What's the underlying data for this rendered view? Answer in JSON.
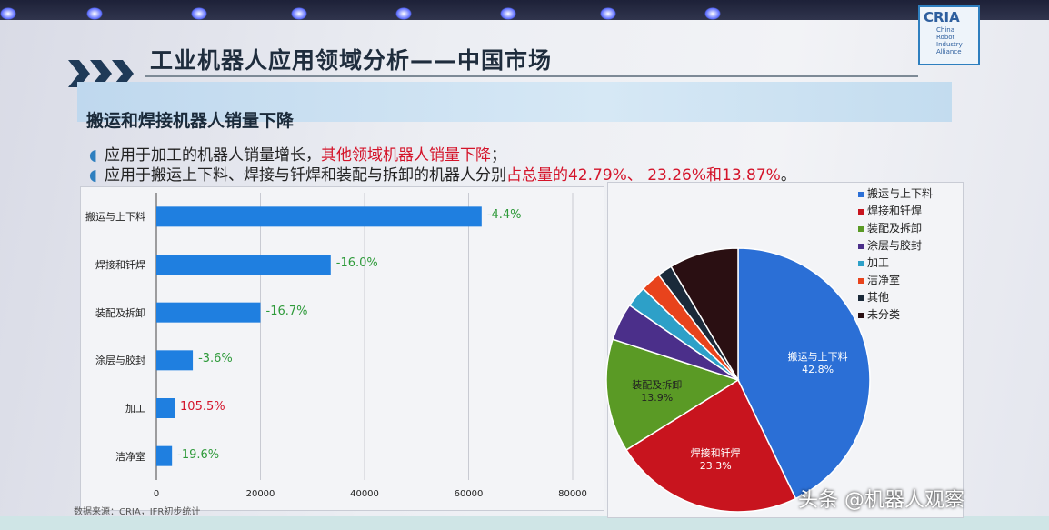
{
  "header": {
    "title": "工业机器人应用领域分析——中国市场",
    "subtitle": "搬运和焊接机器人销量下降",
    "logo_main": "CRIA",
    "logo_sub": [
      "China",
      "Robot",
      "Industry",
      "Alliance"
    ]
  },
  "bullets": [
    {
      "plain": "应用于加工的机器人销量增长，",
      "highlight": "其他领域机器人销量下降",
      "tail": "；"
    },
    {
      "plain": "应用于搬运上下料、焊接与钎焊和装配与拆卸的机器人分别",
      "highlight": "占总量的42.79%、 23.26%和13.87%",
      "tail": "。"
    }
  ],
  "source": "数据来源：CRIA，IFR初步统计",
  "watermark": "头条 @机器人观察",
  "colors": {
    "bar": "#1f7fe0",
    "positive": "#d4142a",
    "negative": "#2e9a3a"
  },
  "chart_data": [
    {
      "type": "bar",
      "orientation": "horizontal",
      "categories": [
        "搬运与上下料",
        "焊接和钎焊",
        "装配及拆卸",
        "涂层与胶封",
        "加工",
        "洁净室"
      ],
      "values": [
        62500,
        33500,
        20000,
        7000,
        3500,
        3000
      ],
      "data_labels": [
        "-4.4%",
        "-16.0%",
        "-16.7%",
        "-3.6%",
        "105.5%",
        "-19.6%"
      ],
      "xlim": [
        0,
        80000
      ],
      "xticks": [
        "0",
        "20000",
        "40000",
        "60000",
        "80000"
      ],
      "grid": true
    },
    {
      "type": "pie",
      "categories": [
        "搬运与上下料",
        "焊接和钎焊",
        "装配及拆卸",
        "涂层与胶封",
        "加工",
        "洁净室",
        "其他",
        "未分类"
      ],
      "values": [
        42.8,
        23.3,
        13.9,
        4.6,
        2.6,
        2.5,
        1.8,
        8.5
      ],
      "slice_labels": [
        {
          "name": "搬运与上下料",
          "value": "42.8%"
        },
        {
          "name": "焊接和钎焊",
          "value": "23.3%"
        },
        {
          "name": "装配及拆卸",
          "value": "13.9%"
        },
        null,
        null,
        null,
        null,
        null
      ],
      "colors": [
        "#2b6fd6",
        "#c8141e",
        "#5a9a25",
        "#4b2f8a",
        "#2da0c8",
        "#e8431c",
        "#1a2a3a",
        "#2a0f12"
      ],
      "legend": "right"
    }
  ]
}
